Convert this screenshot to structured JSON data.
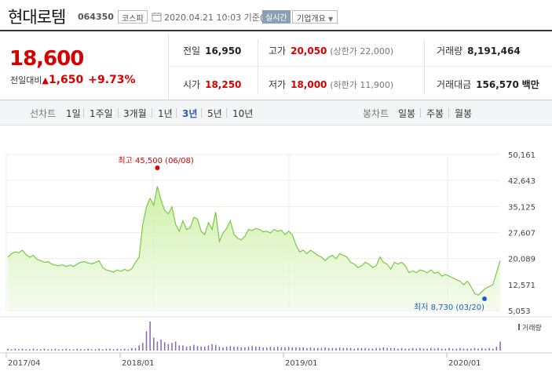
{
  "header": {
    "stock_name": "현대로템",
    "stock_code": "064350",
    "market": "코스피",
    "date_text": "2020.04.21 10:03  기준(장중)",
    "realtime": "실시간",
    "company_info": "기업개요",
    "clock_icon": "clock-icon",
    "dropdown_icon": "chevron-down-icon"
  },
  "quote": {
    "price": "18,600",
    "change_label": "전일대비",
    "change_arrow": "▲",
    "change_value": "1,650",
    "change_pct": "+9.73%",
    "prev_close_label": "전일",
    "prev_close": "16,950",
    "high_label": "고가",
    "high": "20,050",
    "upper_limit": "(상한가 22,000)",
    "volume_label": "거래량",
    "volume": "8,191,464",
    "open_label": "시가",
    "open": "18,250",
    "low_label": "저가",
    "low": "18,000",
    "lower_limit": "(하한가 11,900)",
    "amount_label": "거래대금",
    "amount": "156,570",
    "amount_unit": "백만",
    "accent_color": "#d60000"
  },
  "periods": {
    "chart_label": "선차트",
    "items": [
      "1일",
      "1주일",
      "3개월",
      "1년",
      "3년",
      "5년",
      "10년"
    ],
    "active": "3년",
    "candle_label": "봉차트",
    "candle_items": [
      "일봉",
      "주봉",
      "월봉"
    ]
  },
  "chart_data": {
    "type": "area",
    "y_ticks": [
      "50,161",
      "42,643",
      "35,125",
      "27,607",
      "20,089",
      "12,571",
      "5,053"
    ],
    "x_ticks": [
      "2017/04",
      "2018/01",
      "2019/01",
      "2020/01"
    ],
    "ylim": [
      5053,
      50161
    ],
    "series": [
      {
        "values": [
          20500,
          21500,
          22000,
          21800,
          22500,
          21200,
          20500,
          21000,
          19800,
          19500,
          19000,
          19200,
          18500,
          18200,
          18000,
          18300,
          17800,
          18200,
          17800,
          18500,
          19000,
          19200,
          18800,
          18600,
          18900,
          19500,
          17500,
          16800,
          16500,
          16200,
          16800,
          16400,
          17000,
          16500,
          17200,
          19000,
          20500,
          30000,
          35000,
          37500,
          35500,
          41000,
          37000,
          34000,
          33000,
          35000,
          30000,
          28000,
          31000,
          28500,
          29000,
          32000,
          31500,
          28000,
          27000,
          30500,
          28500,
          33500,
          25000,
          27500,
          28800,
          31000,
          27000,
          26000,
          25500,
          26500,
          28500,
          28200,
          28800,
          28500,
          27800,
          28000,
          27500,
          28500,
          28000,
          28300,
          27000,
          28000,
          27000,
          24000,
          22000,
          22500,
          21500,
          22500,
          21800,
          21000,
          20500,
          19500,
          20500,
          21000,
          20000,
          21500,
          21000,
          20500,
          19000,
          18500,
          17500,
          18000,
          19000,
          18500,
          17500,
          18000,
          20500,
          19000,
          18500,
          17000,
          19000,
          18500,
          19000,
          18000,
          16000,
          16500,
          16000,
          16800,
          16500,
          16000,
          16800,
          15800,
          16200,
          15000,
          15500,
          15000,
          14500,
          14000,
          13500,
          12500,
          13500,
          12000,
          10000,
          9500,
          10500,
          11500,
          12000,
          12500,
          16000,
          19500
        ]
      }
    ],
    "volumes": [
      3,
      2,
      3,
      2,
      3,
      2,
      2,
      3,
      2,
      2,
      3,
      2,
      2,
      3,
      2,
      2,
      3,
      2,
      2,
      3,
      2,
      2,
      3,
      2,
      2,
      3,
      2,
      3,
      3,
      2,
      3,
      2,
      3,
      2,
      4,
      4,
      8,
      12,
      30,
      45,
      20,
      14,
      17,
      13,
      10,
      12,
      14,
      8,
      8,
      6,
      7,
      9,
      7,
      6,
      6,
      8,
      10,
      9,
      6,
      5,
      6,
      7,
      6,
      6,
      5,
      5,
      6,
      7,
      6,
      6,
      5,
      5,
      6,
      5,
      6,
      5,
      5,
      6,
      5,
      5,
      5,
      5,
      4,
      5,
      4,
      4,
      4,
      5,
      4,
      4,
      4,
      5,
      4,
      4,
      4,
      3,
      4,
      4,
      4,
      3,
      3,
      4,
      4,
      5,
      4,
      4,
      4,
      3,
      4,
      3,
      3,
      4,
      3,
      4,
      3,
      3,
      4,
      3,
      4,
      3,
      3,
      4,
      3,
      3,
      4,
      3,
      3,
      3,
      4,
      3,
      4,
      3,
      4,
      3,
      6,
      14
    ],
    "annotations": {
      "high": "최고 45,500 (06/08)",
      "low": "최저 8,730 (03/20)"
    },
    "volume_legend": "거래량",
    "line_color": "#7ac943",
    "fill_color": "#c9ef9f",
    "volume_color": "#8b6fb5",
    "grid": true
  }
}
